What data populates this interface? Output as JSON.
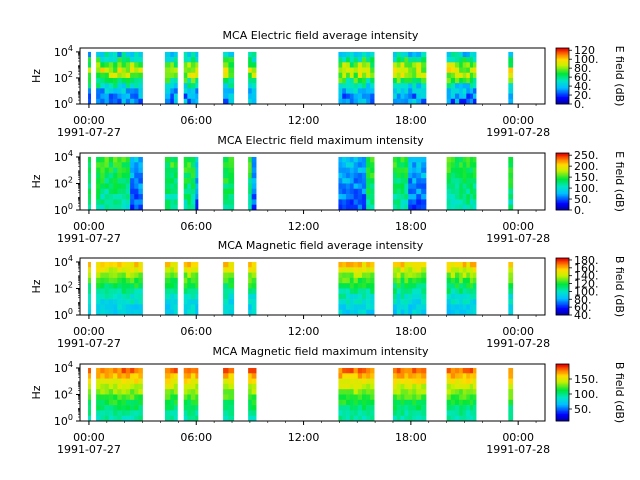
{
  "chart_data": [
    {
      "type": "heatmap",
      "title": "MCA  Electric field average intensity",
      "ylabel": "Hz",
      "colorbar_label": "E field (dB)",
      "colorbar_ticks": [
        "0.",
        "20.",
        "40.",
        "60.",
        "80.",
        "100.",
        "120"
      ],
      "clim": [
        0,
        125
      ],
      "profile": "e_avg"
    },
    {
      "type": "heatmap",
      "title": "MCA  Electric field maximum intensity",
      "ylabel": "Hz",
      "colorbar_label": "E field (dB)",
      "colorbar_ticks": [
        "0.",
        "50.",
        "100.",
        "150.",
        "200.",
        "250."
      ],
      "clim": [
        0,
        260
      ],
      "profile": "e_max"
    },
    {
      "type": "heatmap",
      "title": "MCA  Magnetic field average intensity",
      "ylabel": "Hz",
      "colorbar_label": "B field (dB)",
      "colorbar_ticks": [
        "40.",
        "60.",
        "80.",
        "100.",
        "120.",
        "140.",
        "160.",
        "180."
      ],
      "clim": [
        40,
        185
      ],
      "profile": "b_avg"
    },
    {
      "type": "heatmap",
      "title": "MCA  Magnetic field maximum intensity",
      "ylabel": "Hz",
      "colorbar_label": "B field (dB)",
      "colorbar_ticks": [
        "50.",
        "100.",
        "150."
      ],
      "clim": [
        10,
        200
      ],
      "profile": "b_max"
    }
  ],
  "shared": {
    "x_ticks": [
      "00:00",
      "06:00",
      "12:00",
      "18:00",
      "00:00"
    ],
    "x_tick_hours": [
      0,
      6,
      12,
      18,
      24
    ],
    "x_range_hours": [
      -0.5,
      25.5
    ],
    "date_start": "1991-07-27",
    "date_end": "1991-07-28",
    "y_ticks": [
      {
        "base": "10",
        "exp": "0"
      },
      {
        "base": "10",
        "exp": "2"
      },
      {
        "base": "10",
        "exp": "4"
      }
    ],
    "y_range_log10": [
      0,
      4.3
    ],
    "data_log10_top": 4.0,
    "coverage_hours": [
      [
        -0.05,
        0.1
      ],
      [
        0.4,
        1.35
      ],
      [
        1.35,
        2.3
      ],
      [
        2.3,
        3.0
      ],
      [
        4.25,
        4.55
      ],
      [
        4.55,
        4.95
      ],
      [
        5.3,
        5.7
      ],
      [
        5.7,
        5.95
      ],
      [
        5.95,
        6.1
      ],
      [
        7.5,
        7.8
      ],
      [
        7.8,
        8.1
      ],
      [
        8.9,
        9.1
      ],
      [
        9.1,
        9.35
      ],
      [
        13.95,
        14.8
      ],
      [
        14.8,
        15.5
      ],
      [
        15.5,
        15.95
      ],
      [
        17.0,
        17.85
      ],
      [
        17.85,
        18.3
      ],
      [
        18.3,
        18.85
      ],
      [
        20.0,
        20.7
      ],
      [
        20.7,
        21.3
      ],
      [
        21.3,
        21.65
      ],
      [
        23.45,
        23.7
      ]
    ]
  }
}
